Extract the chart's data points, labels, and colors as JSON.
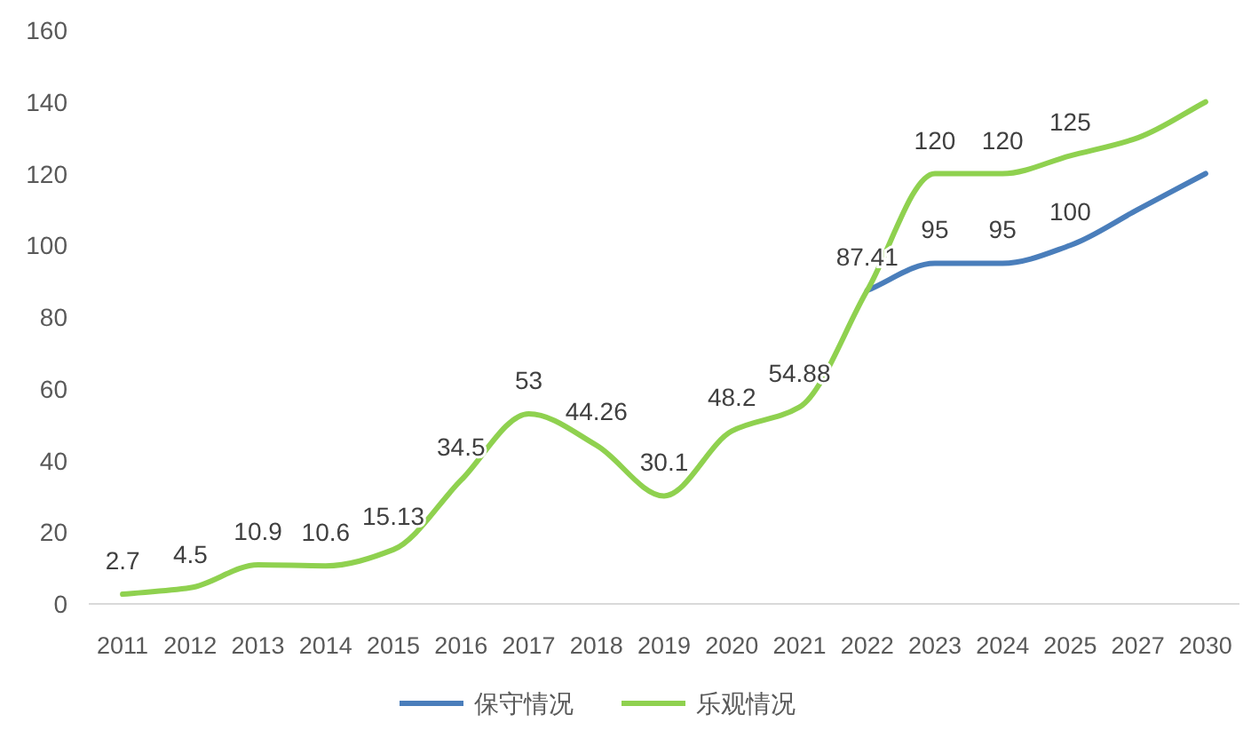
{
  "chart_data": {
    "type": "line",
    "categories": [
      "2011",
      "2012",
      "2013",
      "2014",
      "2015",
      "2016",
      "2017",
      "2018",
      "2019",
      "2020",
      "2021",
      "2022",
      "2023",
      "2024",
      "2025",
      "2027",
      "2030"
    ],
    "ylim": [
      0,
      160
    ],
    "yticks": [
      0,
      20,
      40,
      60,
      80,
      100,
      120,
      140,
      160
    ],
    "legend": "bottom",
    "marker": "none",
    "series": [
      {
        "name": "保守情况",
        "color": "#4a7ebb",
        "values": [
          null,
          null,
          null,
          null,
          null,
          null,
          null,
          null,
          null,
          null,
          null,
          87.41,
          95,
          95,
          100,
          110,
          120
        ],
        "value_labels": [
          null,
          null,
          null,
          null,
          null,
          null,
          null,
          null,
          null,
          null,
          null,
          null,
          "95",
          "95",
          "100",
          null,
          null
        ]
      },
      {
        "name": "乐观情况",
        "color": "#8fd14f",
        "values": [
          2.7,
          4.5,
          10.9,
          10.6,
          15.13,
          34.5,
          53,
          44.26,
          30.1,
          48.2,
          54.88,
          87.41,
          120,
          120,
          125,
          130,
          140
        ],
        "value_labels": [
          "2.7",
          "4.5",
          "10.9",
          "10.6",
          "15.13",
          "34.5",
          "53",
          "44.26",
          "30.1",
          "48.2",
          "54.88",
          "87.41",
          "120",
          "120",
          "125",
          null,
          null
        ]
      }
    ]
  }
}
